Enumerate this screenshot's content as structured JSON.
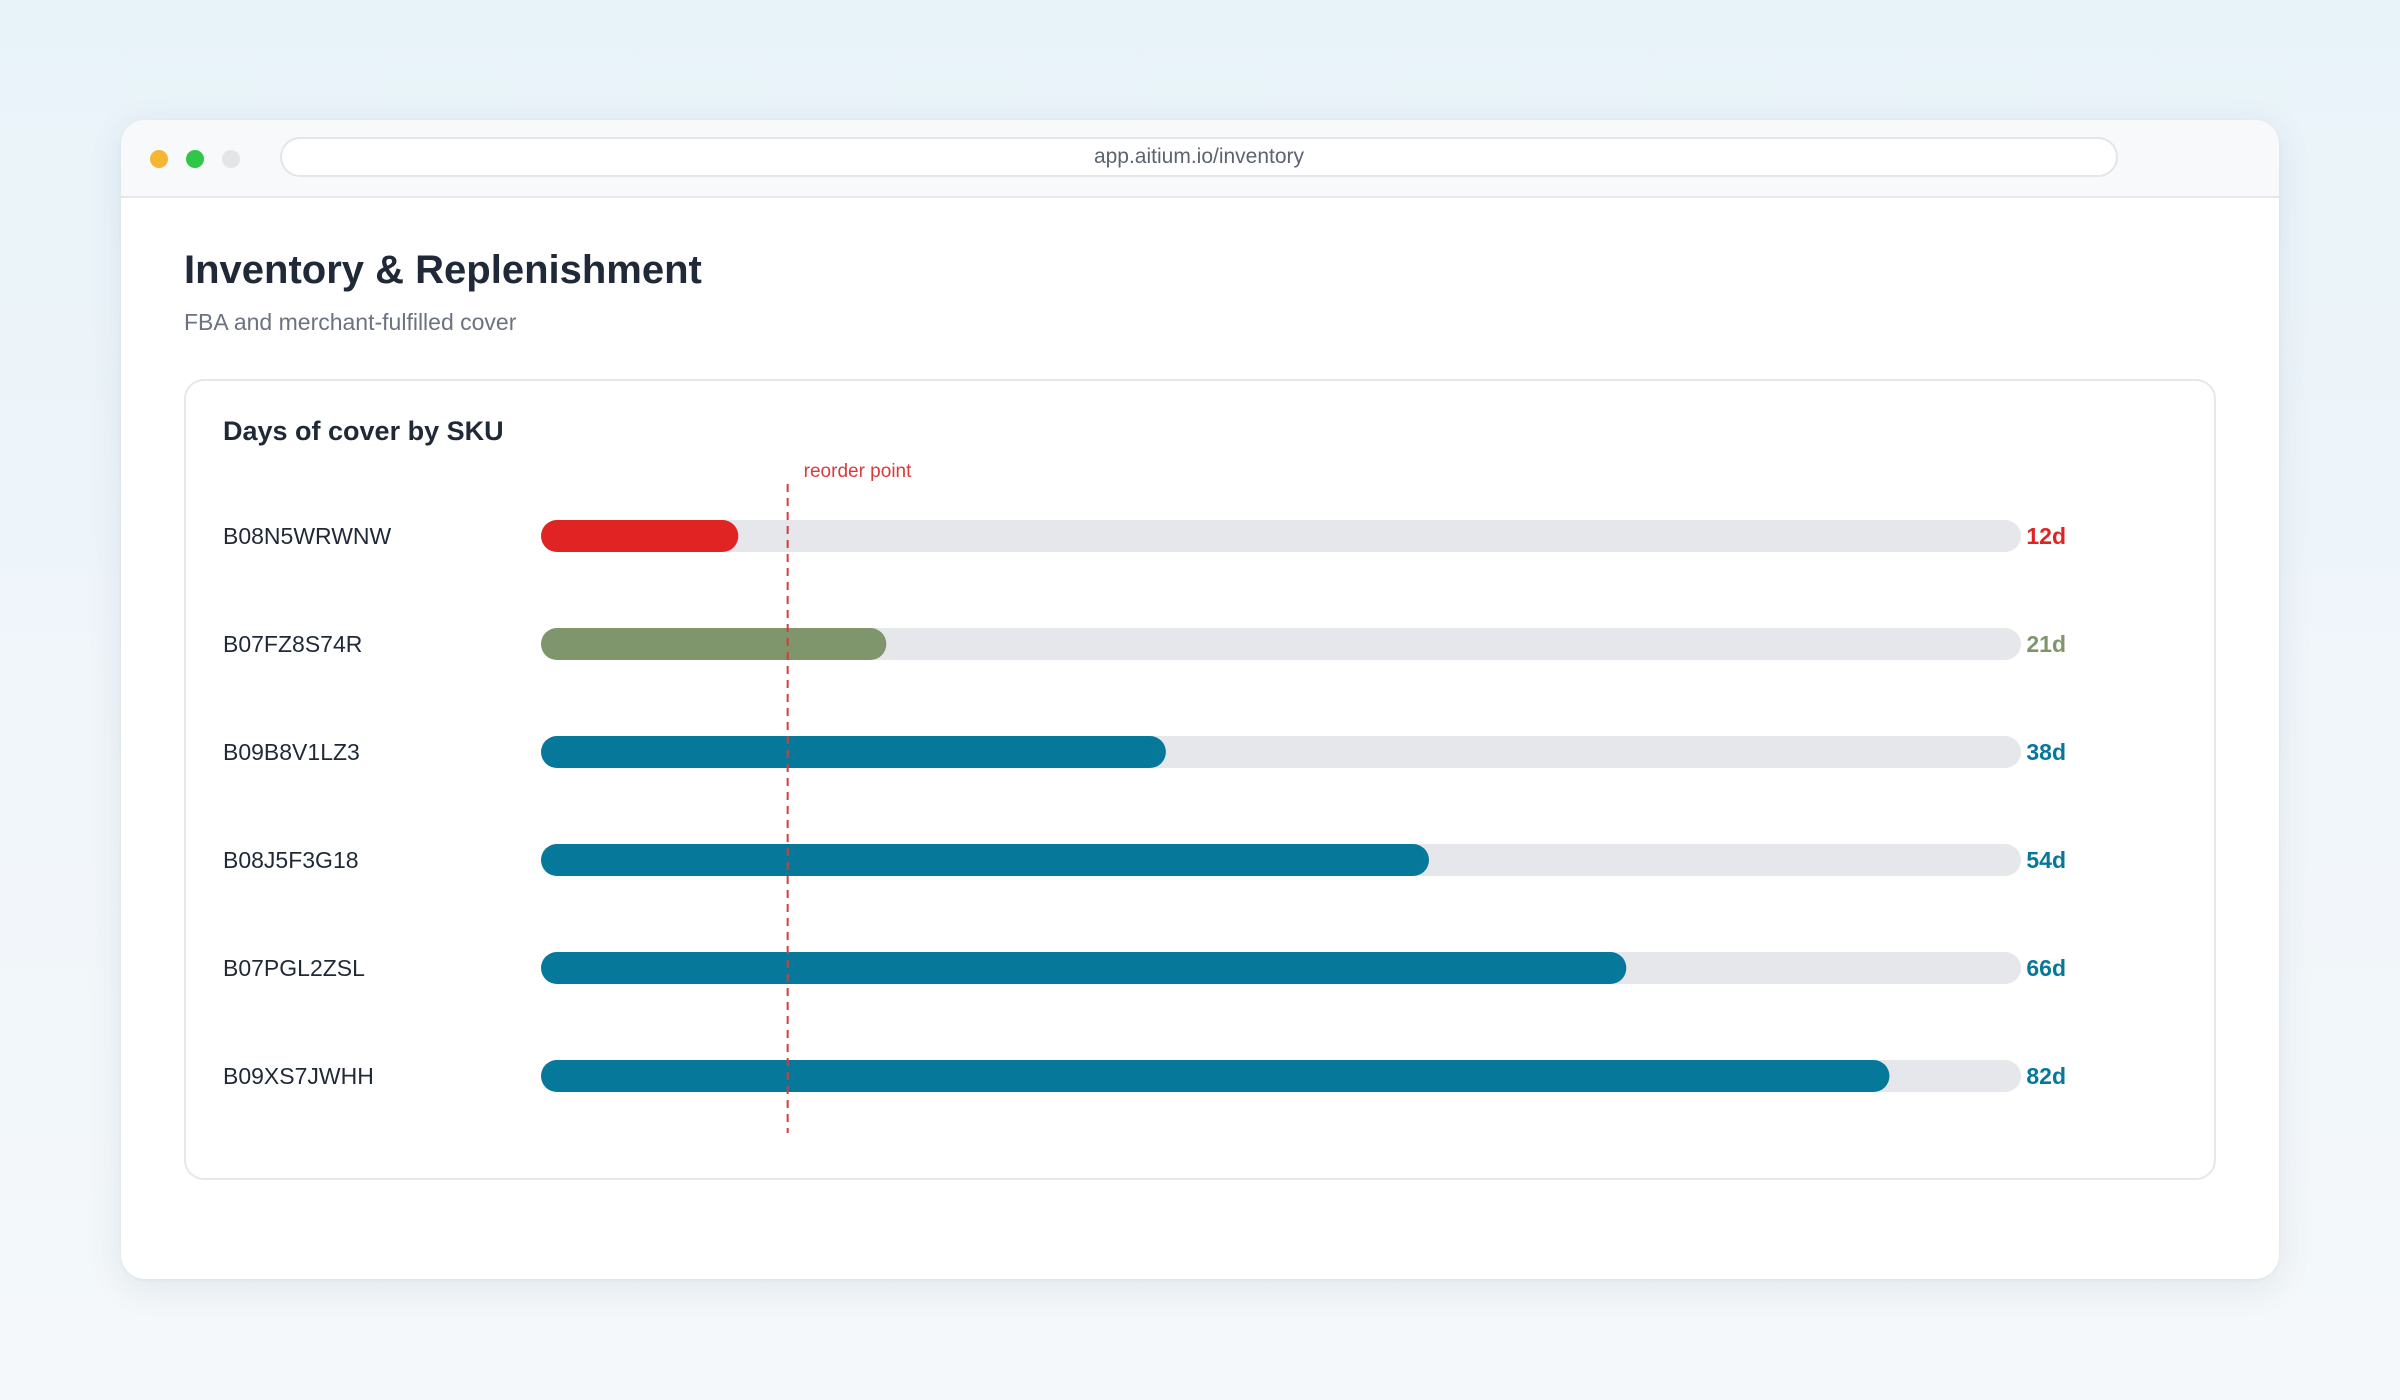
{
  "browser": {
    "url": "app.aitium.io/inventory",
    "dot_colors": [
      "#f5b731",
      "#2fc64a",
      "#e3e5e8"
    ]
  },
  "page": {
    "title": "Inventory & Replenishment",
    "subtitle": "FBA and merchant-fulfilled cover"
  },
  "chart_data": {
    "type": "bar",
    "orientation": "horizontal",
    "title": "Days of cover by SKU",
    "categories": [
      "B08N5WRWNW",
      "B07FZ8S74R",
      "B09B8V1LZ3",
      "B08J5F3G18",
      "B07PGL2ZSL",
      "B09XS7JWHH"
    ],
    "values": [
      12,
      21,
      38,
      54,
      66,
      82
    ],
    "value_labels": [
      "12d",
      "21d",
      "38d",
      "54d",
      "66d",
      "82d"
    ],
    "colors": [
      "#e02424",
      "#7f966d",
      "#06799b",
      "#06799b",
      "#06799b",
      "#06799b"
    ],
    "track_color": "#e5e7eb",
    "xlim": [
      0,
      90
    ],
    "reference_line": {
      "label": "reorder point",
      "value": 15,
      "color": "#d93a3a"
    },
    "grid": false,
    "legend": "none"
  }
}
